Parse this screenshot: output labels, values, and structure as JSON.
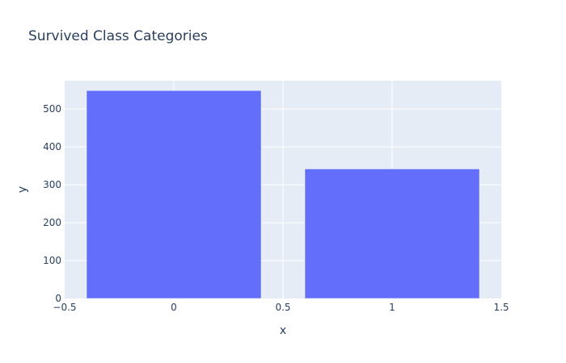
{
  "chart_data": {
    "type": "bar",
    "title": "Survived Class Categories",
    "xlabel": "x",
    "ylabel": "y",
    "x": [
      0,
      1
    ],
    "values": [
      549,
      342
    ],
    "bar_width": 0.8,
    "xlim": [
      -0.5,
      1.5
    ],
    "ylim": [
      0,
      575
    ],
    "x_ticks": [
      -0.5,
      0,
      0.5,
      1,
      1.5
    ],
    "x_tick_labels": [
      "−0.5",
      "0",
      "0.5",
      "1",
      "1.5"
    ],
    "y_ticks": [
      0,
      100,
      200,
      300,
      400,
      500
    ],
    "y_tick_labels": [
      "0",
      "100",
      "200",
      "300",
      "400",
      "500"
    ],
    "grid": true,
    "legend": "none",
    "colors": {
      "bar": "#636efa",
      "plot_background": "#e5ecf6",
      "grid": "#ffffff",
      "text": "#2a3f5f"
    }
  }
}
